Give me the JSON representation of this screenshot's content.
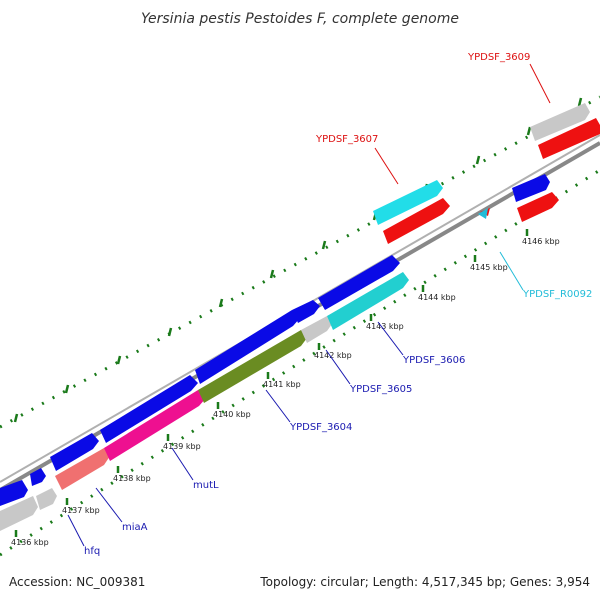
{
  "title": "Yersinia pestis Pestoides F, complete genome",
  "footer": {
    "accession": "Accession: NC_009381",
    "summary": "Topology: circular; Length: 4,517,345 bp; Genes: 3,954"
  },
  "colors": {
    "backbone": "#888888",
    "tick": "#1a7a1a",
    "gene_blue": "#0a0ae6",
    "gene_red": "#ee1111",
    "gene_cyan": "#22dde8",
    "gene_teal": "#22cfd0",
    "gene_grey": "#c8c8c8",
    "gene_pink": "#ee1090",
    "gene_salmon": "#f07070",
    "gene_olive": "#6a8c22",
    "label_blue": "#1a1ab0",
    "label_red": "#dd1111",
    "label_cyan": "#22bcd8"
  },
  "scale": {
    "unit": "kbp",
    "labels": [
      "4136 kbp",
      "4137 kbp",
      "4138 kbp",
      "4139 kbp",
      "4140 kbp",
      "4141 kbp",
      "4142 kbp",
      "4143 kbp",
      "4144 kbp",
      "4145 kbp",
      "4146 kbp"
    ]
  },
  "gene_labels": [
    {
      "text": "hfq",
      "color": "label_blue"
    },
    {
      "text": "miaA",
      "color": "label_blue"
    },
    {
      "text": "mutL",
      "color": "label_blue"
    },
    {
      "text": "YPDSF_3604",
      "color": "label_blue"
    },
    {
      "text": "YPDSF_3605",
      "color": "label_blue"
    },
    {
      "text": "YPDSF_3606",
      "color": "label_blue"
    },
    {
      "text": "YPDSF_3607",
      "color": "label_red"
    },
    {
      "text": "YPDSF_3609",
      "color": "label_red"
    },
    {
      "text": "YPDSF_R0092",
      "color": "label_cyan"
    }
  ]
}
